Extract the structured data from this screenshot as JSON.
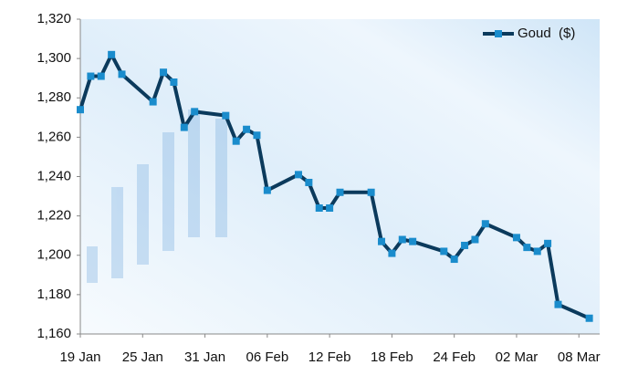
{
  "chart_data": {
    "type": "line",
    "x": [
      "19 Jan",
      "20 Jan",
      "21 Jan",
      "22 Jan",
      "23 Jan",
      "26 Jan",
      "27 Jan",
      "28 Jan",
      "29 Jan",
      "30 Jan",
      "02 Feb",
      "03 Feb",
      "04 Feb",
      "05 Feb",
      "06 Feb",
      "09 Feb",
      "10 Feb",
      "11 Feb",
      "12 Feb",
      "13 Feb",
      "16 Feb",
      "17 Feb",
      "18 Feb",
      "19 Feb",
      "20 Feb",
      "23 Feb",
      "24 Feb",
      "25 Feb",
      "26 Feb",
      "27 Feb",
      "02 Mar",
      "03 Mar",
      "04 Mar",
      "05 Mar",
      "06 Mar",
      "09 Mar"
    ],
    "series": [
      {
        "name": "Goud  ($)",
        "color": "#0b3a5c",
        "marker_color": "#1a8ccc",
        "values": [
          1274,
          1291,
          1291,
          1302,
          1292,
          1278,
          1293,
          1288,
          1265,
          1273,
          1271,
          1258,
          1264,
          1261,
          1233,
          1241,
          1237,
          1224,
          1224,
          1232,
          1232,
          1207,
          1201,
          1208,
          1207,
          1202,
          1198,
          1205,
          1208,
          1216,
          1209,
          1204,
          1202,
          1206,
          1175,
          1168
        ]
      }
    ],
    "xlim": [
      "19 Jan",
      "10 Mar"
    ],
    "xticks": [
      "19 Jan",
      "25 Jan",
      "31 Jan",
      "06 Feb",
      "12 Feb",
      "18 Feb",
      "24 Feb",
      "02 Mar",
      "08 Mar"
    ],
    "ylim": [
      1160,
      1320
    ],
    "yticks": [
      {
        "value": 1160,
        "label": "1,160"
      },
      {
        "value": 1180,
        "label": "1,180"
      },
      {
        "value": 1200,
        "label": "1,200"
      },
      {
        "value": 1220,
        "label": "1,220"
      },
      {
        "value": 1240,
        "label": "1,240"
      },
      {
        "value": 1260,
        "label": "1,260"
      },
      {
        "value": 1280,
        "label": "1,280"
      },
      {
        "value": 1300,
        "label": "1,300"
      },
      {
        "value": 1320,
        "label": "1,320"
      }
    ],
    "legend": "top-right",
    "grid": false
  }
}
